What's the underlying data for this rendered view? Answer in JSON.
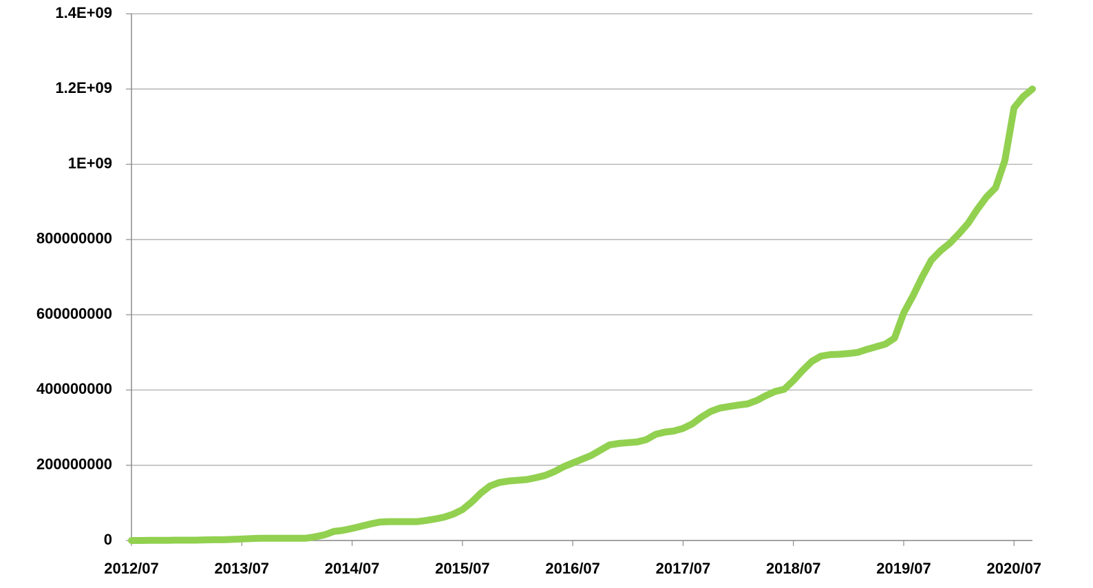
{
  "chart_data": {
    "type": "line",
    "categories": [
      "2012/07",
      null,
      null,
      null,
      null,
      null,
      null,
      null,
      null,
      null,
      null,
      null,
      "2013/07",
      null,
      null,
      null,
      null,
      null,
      null,
      null,
      null,
      null,
      null,
      null,
      "2014/07",
      null,
      null,
      null,
      null,
      null,
      null,
      null,
      null,
      null,
      null,
      null,
      "2015/07",
      null,
      null,
      null,
      null,
      null,
      null,
      null,
      null,
      null,
      null,
      null,
      "2016/07",
      null,
      null,
      null,
      null,
      null,
      null,
      null,
      null,
      null,
      null,
      null,
      "2017/07",
      null,
      null,
      null,
      null,
      null,
      null,
      null,
      null,
      null,
      null,
      null,
      "2018/07",
      null,
      null,
      null,
      null,
      null,
      null,
      null,
      null,
      null,
      null,
      null,
      "2019/07",
      null,
      null,
      null,
      null,
      null,
      null,
      null,
      null,
      null,
      null,
      null,
      "2020/07",
      null,
      null
    ],
    "series": [
      {
        "color": "#92d050",
        "values": [
          0,
          0,
          500000,
          500000,
          500000,
          1000000,
          1000000,
          1000000,
          1500000,
          2000000,
          2000000,
          3000000,
          4000000,
          5000000,
          6000000,
          6000000,
          6000000,
          6000000,
          6000000,
          6000000,
          10000000,
          15000000,
          24000000,
          27000000,
          32000000,
          38000000,
          44000000,
          49000000,
          50000000,
          50000000,
          50000000,
          50000000,
          53000000,
          57000000,
          62000000,
          70000000,
          82000000,
          102000000,
          126000000,
          145000000,
          154000000,
          158000000,
          160000000,
          162000000,
          167000000,
          173000000,
          183000000,
          196000000,
          206000000,
          216000000,
          226000000,
          240000000,
          254000000,
          258000000,
          260000000,
          262000000,
          268000000,
          282000000,
          288000000,
          291000000,
          298000000,
          310000000,
          328000000,
          343000000,
          352000000,
          356000000,
          360000000,
          363000000,
          372000000,
          385000000,
          396000000,
          402000000,
          425000000,
          452000000,
          476000000,
          490000000,
          494000000,
          495000000,
          497000000,
          500000000,
          508000000,
          515000000,
          522000000,
          538000000,
          605000000,
          650000000,
          700000000,
          745000000,
          770000000,
          790000000,
          815000000,
          843000000,
          880000000,
          913000000,
          938000000,
          1010000000,
          1150000000,
          1180000000,
          1200000000
        ]
      }
    ],
    "ylim": [
      0,
      1400000000
    ],
    "yticks": [
      0,
      200000000,
      400000000,
      600000000,
      800000000,
      {
        "value": 1000000000,
        "label": "1E+09"
      },
      {
        "value": 1200000000,
        "label": "1.2E+09"
      },
      {
        "value": 1400000000,
        "label": "1.4E+09"
      }
    ],
    "grid": true
  }
}
